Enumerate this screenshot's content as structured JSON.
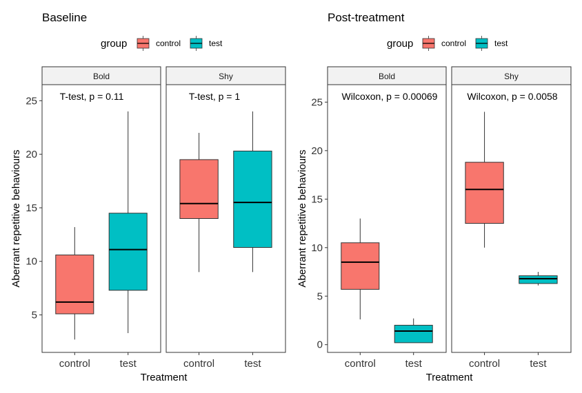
{
  "chart_data": [
    {
      "type": "boxplot",
      "title": "Baseline",
      "legend": {
        "title": "group",
        "position": "top",
        "entries": [
          "control",
          "test"
        ]
      },
      "colors": {
        "control": "#F8766D",
        "test": "#00BFC4"
      },
      "xlabel": "Treatment",
      "ylabel": "Aberrant repetitive behaviours",
      "ylim": [
        1.5,
        26.5
      ],
      "yticks": [
        5,
        10,
        15,
        20,
        25
      ],
      "panels": [
        {
          "strip": "Bold",
          "annotation": "T-test, p = 0.11",
          "categories": [
            "control",
            "test"
          ],
          "boxes": [
            {
              "group": "control",
              "min": 2.7,
              "q1": 5.1,
              "median": 6.2,
              "q3": 10.6,
              "max": 13.2
            },
            {
              "group": "test",
              "min": 3.3,
              "q1": 7.3,
              "median": 11.1,
              "q3": 14.5,
              "max": 24.0
            }
          ]
        },
        {
          "strip": "Shy",
          "annotation": "T-test, p = 1",
          "categories": [
            "control",
            "test"
          ],
          "boxes": [
            {
              "group": "control",
              "min": 9.0,
              "q1": 14.0,
              "median": 15.4,
              "q3": 19.5,
              "max": 22.0
            },
            {
              "group": "test",
              "min": 9.0,
              "q1": 11.3,
              "median": 15.5,
              "q3": 20.3,
              "max": 24.0
            }
          ]
        }
      ]
    },
    {
      "type": "boxplot",
      "title": "Post-treatment",
      "legend": {
        "title": "group",
        "position": "top",
        "entries": [
          "control",
          "test"
        ]
      },
      "colors": {
        "control": "#F8766D",
        "test": "#00BFC4"
      },
      "xlabel": "Treatment",
      "ylabel": "Aberrant repetitive behaviours",
      "ylim": [
        -0.8,
        26.8
      ],
      "yticks": [
        0,
        5,
        10,
        15,
        20,
        25
      ],
      "panels": [
        {
          "strip": "Bold",
          "annotation": "Wilcoxon, p = 0.00069",
          "categories": [
            "control",
            "test"
          ],
          "boxes": [
            {
              "group": "control",
              "min": 2.6,
              "q1": 5.7,
              "median": 8.5,
              "q3": 10.5,
              "max": 13.0
            },
            {
              "group": "test",
              "min": 0.2,
              "q1": 0.2,
              "median": 1.4,
              "q3": 2.0,
              "max": 2.7
            }
          ]
        },
        {
          "strip": "Shy",
          "annotation": "Wilcoxon, p = 0.0058",
          "categories": [
            "control",
            "test"
          ],
          "boxes": [
            {
              "group": "control",
              "min": 10.0,
              "q1": 12.5,
              "median": 16.0,
              "q3": 18.8,
              "max": 24.0
            },
            {
              "group": "test",
              "min": 6.1,
              "q1": 6.3,
              "median": 6.8,
              "q3": 7.1,
              "max": 7.5
            }
          ]
        }
      ]
    }
  ]
}
